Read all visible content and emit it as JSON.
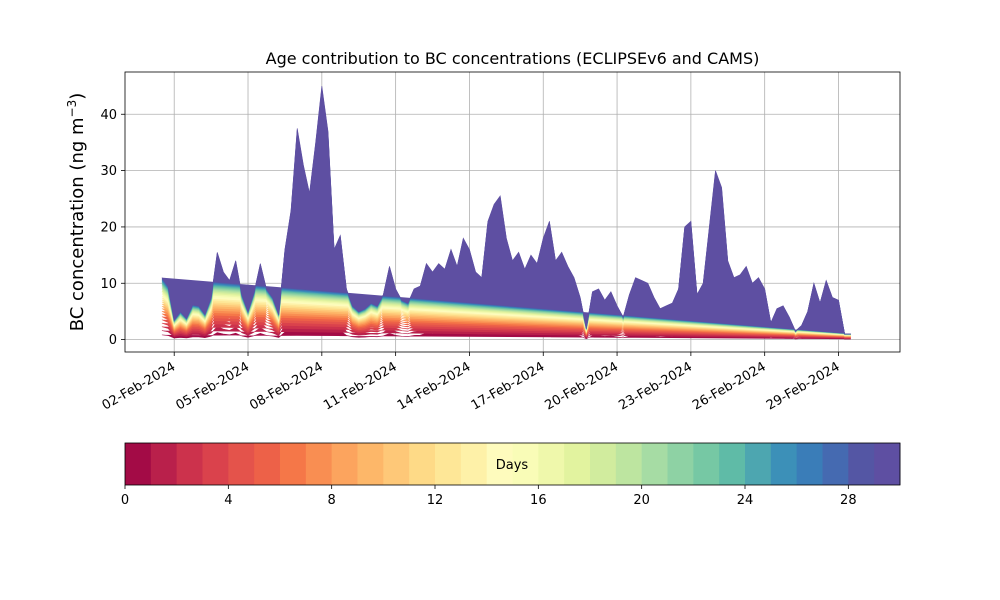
{
  "chart_data": {
    "type": "area",
    "subtype": "stacked-area",
    "title": "Age contribution to BC concentrations (ECLIPSEv6 and CAMS)",
    "xlabel": "",
    "ylabel": "BC concentration (ng m",
    "ylabel_sup": "−3",
    "ylabel_suffix": ")",
    "ylim": [
      -2.2,
      47.5
    ],
    "yticks": [
      "0",
      "10",
      "20",
      "30",
      "40"
    ],
    "ytick_values": [
      0,
      10,
      20,
      30,
      40
    ],
    "xlim": [
      "2024-01-31 00:00",
      "2024-03-02 12:00"
    ],
    "xticks": [
      "02-Feb-2024",
      "05-Feb-2024",
      "08-Feb-2024",
      "11-Feb-2024",
      "14-Feb-2024",
      "17-Feb-2024",
      "20-Feb-2024",
      "23-Feb-2024",
      "26-Feb-2024",
      "29-Feb-2024"
    ],
    "xtick_dates": [
      "2024-02-02",
      "2024-02-05",
      "2024-02-08",
      "2024-02-11",
      "2024-02-14",
      "2024-02-17",
      "2024-02-20",
      "2024-02-23",
      "2024-02-26",
      "2024-02-29"
    ],
    "grid": true,
    "x": [
      "2024-02-01 12:00",
      "2024-02-01 18:00",
      "2024-02-02 00:00",
      "2024-02-02 06:00",
      "2024-02-02 12:00",
      "2024-02-02 18:00",
      "2024-02-03 00:00",
      "2024-02-03 06:00",
      "2024-02-03 12:00",
      "2024-02-03 18:00",
      "2024-02-04 00:00",
      "2024-02-04 06:00",
      "2024-02-04 12:00",
      "2024-02-04 18:00",
      "2024-02-05 00:00",
      "2024-02-05 06:00",
      "2024-02-05 12:00",
      "2024-02-05 18:00",
      "2024-02-06 00:00",
      "2024-02-06 06:00",
      "2024-02-06 12:00",
      "2024-02-06 18:00",
      "2024-02-07 00:00",
      "2024-02-07 06:00",
      "2024-02-07 12:00",
      "2024-02-07 18:00",
      "2024-02-08 00:00",
      "2024-02-08 06:00",
      "2024-02-08 12:00",
      "2024-02-08 18:00",
      "2024-02-09 00:00",
      "2024-02-09 06:00",
      "2024-02-09 12:00",
      "2024-02-09 18:00",
      "2024-02-10 00:00",
      "2024-02-10 06:00",
      "2024-02-10 12:00",
      "2024-02-10 18:00",
      "2024-02-11 00:00",
      "2024-02-11 06:00",
      "2024-02-11 12:00",
      "2024-02-11 18:00",
      "2024-02-12 00:00",
      "2024-02-12 06:00",
      "2024-02-12 12:00",
      "2024-02-12 18:00",
      "2024-02-13 00:00",
      "2024-02-13 06:00",
      "2024-02-13 12:00",
      "2024-02-13 18:00",
      "2024-02-14 00:00",
      "2024-02-14 06:00",
      "2024-02-14 12:00",
      "2024-02-14 18:00",
      "2024-02-15 00:00",
      "2024-02-15 06:00",
      "2024-02-15 12:00",
      "2024-02-15 18:00",
      "2024-02-16 00:00",
      "2024-02-16 06:00",
      "2024-02-16 12:00",
      "2024-02-16 18:00",
      "2024-02-17 00:00",
      "2024-02-17 06:00",
      "2024-02-17 12:00",
      "2024-02-17 18:00",
      "2024-02-18 00:00",
      "2024-02-18 06:00",
      "2024-02-18 12:00",
      "2024-02-18 18:00",
      "2024-02-19 00:00",
      "2024-02-19 06:00",
      "2024-02-19 12:00",
      "2024-02-19 18:00",
      "2024-02-20 00:00",
      "2024-02-20 06:00",
      "2024-02-20 12:00",
      "2024-02-20 18:00",
      "2024-02-21 00:00",
      "2024-02-21 06:00",
      "2024-02-21 12:00",
      "2024-02-21 18:00",
      "2024-02-22 00:00",
      "2024-02-22 06:00",
      "2024-02-22 12:00",
      "2024-02-22 18:00",
      "2024-02-23 00:00",
      "2024-02-23 06:00",
      "2024-02-23 12:00",
      "2024-02-23 18:00",
      "2024-02-24 00:00",
      "2024-02-24 06:00",
      "2024-02-24 12:00",
      "2024-02-24 18:00",
      "2024-02-25 00:00",
      "2024-02-25 06:00",
      "2024-02-25 12:00",
      "2024-02-25 18:00",
      "2024-02-26 00:00",
      "2024-02-26 06:00",
      "2024-02-26 12:00",
      "2024-02-26 18:00",
      "2024-02-27 00:00",
      "2024-02-27 06:00",
      "2024-02-27 12:00",
      "2024-02-27 18:00",
      "2024-02-28 00:00",
      "2024-02-28 06:00",
      "2024-02-28 12:00",
      "2024-02-28 18:00",
      "2024-02-29 00:00",
      "2024-02-29 06:00",
      "2024-02-29 12:00",
      "2024-02-29 18:00",
      "2024-03-01 00:00",
      "2024-03-01 06:00"
    ],
    "total": [
      11.0,
      9.5,
      3.5,
      5.0,
      3.8,
      6.2,
      6.0,
      4.5,
      7.5,
      15.5,
      12.0,
      10.5,
      14.0,
      8.0,
      5.0,
      8.5,
      13.5,
      9.0,
      7.5,
      4.5,
      16.0,
      23.0,
      37.5,
      31.0,
      26.0,
      35.0,
      45.0,
      37.0,
      16.0,
      18.5,
      9.0,
      6.0,
      5.0,
      5.5,
      6.5,
      6.0,
      8.0,
      13.0,
      9.0,
      7.0,
      6.5,
      9.0,
      9.5,
      13.5,
      12.0,
      13.5,
      12.5,
      16.0,
      13.0,
      18.0,
      16.0,
      12.0,
      11.0,
      21.0,
      24.0,
      25.5,
      18.0,
      14.0,
      15.5,
      12.5,
      15.0,
      13.5,
      18.0,
      21.0,
      14.0,
      15.5,
      13.0,
      11.0,
      7.5,
      2.0,
      8.5,
      9.0,
      7.0,
      8.5,
      6.0,
      4.0,
      8.0,
      11.0,
      10.5,
      10.0,
      7.5,
      5.5,
      6.0,
      6.5,
      9.0,
      20.0,
      21.0,
      8.0,
      10.0,
      20.0,
      30.0,
      27.0,
      14.0,
      11.0,
      11.5,
      13.0,
      10.0,
      11.0,
      9.0,
      3.0,
      5.5,
      6.0,
      4.0,
      1.5,
      2.5,
      5.0,
      10.0,
      6.5,
      10.5,
      7.5,
      7.0,
      1.0,
      1.0
    ],
    "young_fraction": [
      0.12,
      0.12,
      0.15,
      0.12,
      0.15,
      0.15,
      0.15,
      0.15,
      0.2,
      0.22,
      0.3,
      0.32,
      0.3,
      0.25,
      0.25,
      0.3,
      0.35,
      0.35,
      0.35,
      0.35,
      0.5,
      0.62,
      0.55,
      0.6,
      0.62,
      0.65,
      0.6,
      0.62,
      0.55,
      0.52,
      0.4,
      0.35,
      0.35,
      0.3,
      0.3,
      0.3,
      0.35,
      0.45,
      0.5,
      0.4,
      0.38,
      0.4,
      0.45,
      0.5,
      0.55,
      0.55,
      0.6,
      0.55,
      0.55,
      0.55,
      0.55,
      0.6,
      0.55,
      0.55,
      0.55,
      0.55,
      0.6,
      0.65,
      0.7,
      0.7,
      0.7,
      0.75,
      0.72,
      0.7,
      0.72,
      0.7,
      0.65,
      0.5,
      0.3,
      0.3,
      0.25,
      0.2,
      0.2,
      0.15,
      0.2,
      0.25,
      0.2,
      0.2,
      0.2,
      0.2,
      0.25,
      0.3,
      0.3,
      0.35,
      0.5,
      0.85,
      0.4,
      0.4,
      0.3,
      0.25,
      0.3,
      0.3,
      0.3,
      0.3,
      0.3,
      0.3,
      0.25,
      0.3,
      0.25,
      0.3,
      0.35,
      0.3,
      0.2,
      0.4,
      0.5,
      0.65,
      0.75,
      0.8,
      0.75,
      0.75,
      0.8,
      0.8,
      0.8
    ],
    "colorbar": {
      "label": "Days",
      "min": 0,
      "max": 30,
      "levels": 30,
      "ticks": [
        "0",
        "4",
        "8",
        "12",
        "16",
        "20",
        "24",
        "28"
      ],
      "tick_values": [
        0,
        4,
        8,
        12,
        16,
        20,
        24,
        28
      ],
      "colormap": "Spectral",
      "colors": [
        "#a30b46",
        "#b9204b",
        "#cc324c",
        "#da424c",
        "#e4534b",
        "#ed6148",
        "#f57748",
        "#f98e52",
        "#fca45e",
        "#fdb769",
        "#fec878",
        "#feda87",
        "#fee797",
        "#fef1a8",
        "#fefbbd",
        "#f9fcb7",
        "#eff8ab",
        "#e2f39f",
        "#d1ec9e",
        "#bde5a0",
        "#a6dca4",
        "#8ed2a4",
        "#76c8a4",
        "#5fbba7",
        "#4da6b0",
        "#3c90b8",
        "#3a7db8",
        "#456ab1",
        "#5456a4",
        "#5e4fa2"
      ]
    }
  }
}
